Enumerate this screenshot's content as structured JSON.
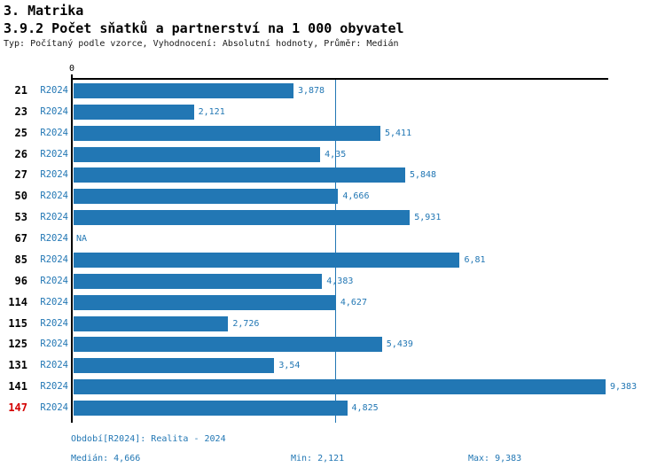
{
  "header": {
    "section_title": "3. Matrika",
    "chart_title": "3.9.2 Počet sňatků a partnerství na 1 000 obyvatel",
    "meta_line": "Typ: Počítaný podle vzorce, Vyhodnocení: Absolutní hodnoty, Průměr: Medián"
  },
  "chart_data": {
    "type": "bar",
    "orientation": "horizontal",
    "title": "3.9.2 Počet sňatků a partnerství na 1 000 obyvatel",
    "xlabel": "",
    "ylabel": "",
    "xlim": [
      0,
      9.46
    ],
    "x_axis_tick_labels": [
      "0"
    ],
    "grid": false,
    "legend_position": "none",
    "series_name": "R2024",
    "median_value": 4.666,
    "min_value": 2.121,
    "max_value": 9.383,
    "categories": [
      "21",
      "23",
      "25",
      "26",
      "27",
      "50",
      "53",
      "67",
      "85",
      "96",
      "114",
      "115",
      "125",
      "131",
      "141",
      "147"
    ],
    "values": [
      3.878,
      2.121,
      5.411,
      4.35,
      5.848,
      4.666,
      5.931,
      null,
      6.81,
      4.383,
      4.627,
      2.726,
      5.439,
      3.54,
      9.383,
      4.825
    ],
    "value_labels": [
      "3,878",
      "2,121",
      "5,411",
      "4,35",
      "5,848",
      "4,666",
      "5,931",
      "NA",
      "6,81",
      "4,383",
      "4,627",
      "2,726",
      "5,439",
      "3,54",
      "9,383",
      "4,825"
    ],
    "highlighted_category": "147",
    "colors": {
      "bar": "#2277b4",
      "value_text": "#2277b4",
      "series_text": "#2277b4",
      "category_text": "#000000",
      "highlight_text": "#d40000",
      "axis": "#000000",
      "median_line": "#2277b4"
    }
  },
  "footer": {
    "period_line": "Období[R2024]: Realita - 2024",
    "median_label": "Medián: 4,666",
    "min_label": "Min: 2,121",
    "max_label": "Max: 9,383"
  }
}
